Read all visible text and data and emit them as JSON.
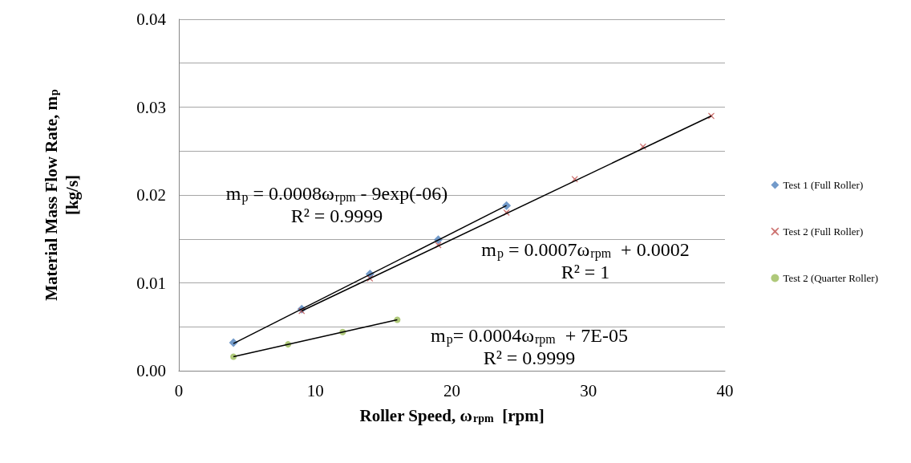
{
  "chart_data": {
    "type": "scatter",
    "xlabel": "Roller Speed, ω$_{rpm}$  [rpm]",
    "ylabel": "Material Mass Flow Rate, m$_{p}$\n[kg/s]",
    "xlim": [
      0,
      40
    ],
    "xticks": [
      0,
      10,
      20,
      30,
      40
    ],
    "ylim": [
      0,
      0.04
    ],
    "yticks": [
      {
        "value": 0,
        "label": "0.00"
      },
      {
        "value": 0.005,
        "label": null
      },
      0.01,
      {
        "value": 0.015,
        "label": null
      },
      0.02,
      {
        "value": 0.025,
        "label": null
      },
      0.03,
      {
        "value": 0.035,
        "label": null
      },
      0.04
    ],
    "grid": "y",
    "legend": "right",
    "series": [
      {
        "name": "Test 1 (Full Roller)",
        "color": "#4f81bd",
        "marker": "diamond",
        "x": [
          4,
          9,
          14,
          19,
          24
        ],
        "values": [
          0.0032,
          0.007,
          0.011,
          0.0149,
          0.0188
        ]
      },
      {
        "name": "Test 2 (Full Roller)",
        "color": "#c0504d",
        "marker": "cross",
        "x": [
          9,
          14,
          19,
          24,
          29,
          34,
          39
        ],
        "values": [
          0.0068,
          0.0105,
          0.0143,
          0.018,
          0.0218,
          0.0255,
          0.029
        ]
      },
      {
        "name": "Test 2 (Quarter Roller)",
        "color": "#9bbb59",
        "marker": "circle",
        "x": [
          4,
          8,
          12,
          16
        ],
        "values": [
          0.0016,
          0.003,
          0.0044,
          0.0058
        ]
      },
      {
        "type": "line",
        "color": "#000000",
        "marker": "none",
        "x": [
          4,
          24
        ],
        "values": [
          0.0031,
          0.0188
        ]
      },
      {
        "type": "line",
        "color": "#000000",
        "marker": "none",
        "x": [
          9,
          39
        ],
        "values": [
          0.0068,
          0.029
        ]
      },
      {
        "type": "line",
        "color": "#000000",
        "marker": "none",
        "x": [
          4,
          16
        ],
        "values": [
          0.0016,
          0.0058
        ]
      }
    ],
    "annotations": [
      "m$_{p}$ = 0.0008ω$_{rpm}$ - 9exp(-06)\nR² = 0.9999",
      "m$_{p}$ = 0.0007ω$_{rpm}$  + 0.0002\nR² = 1",
      "m$_{p}$= 0.0004ω$_{rpm}$  + 7E-05\nR² = 0.9999"
    ]
  }
}
